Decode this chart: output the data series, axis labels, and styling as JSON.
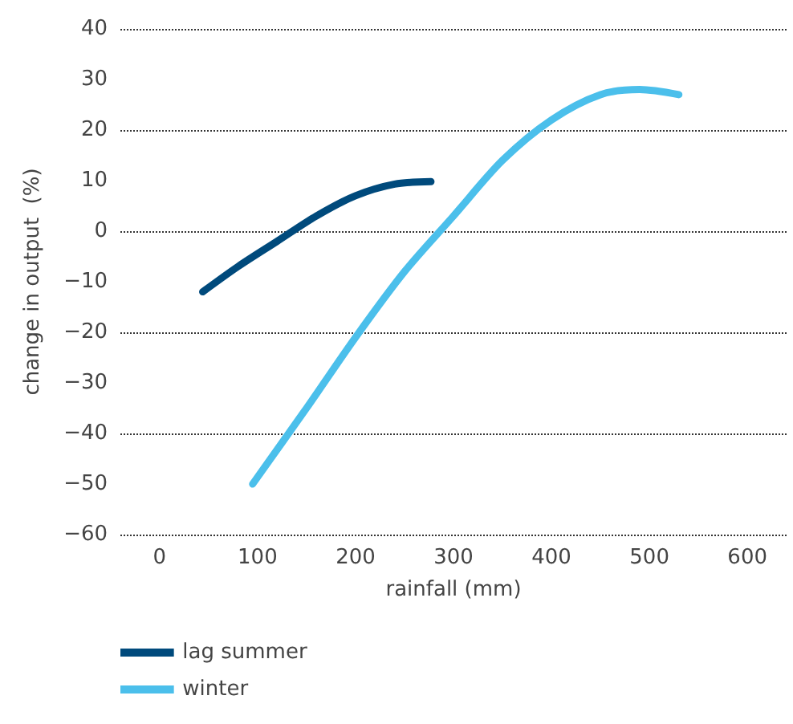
{
  "chart_data": {
    "type": "line",
    "xlabel": "rainfall (mm)",
    "ylabel": "change in output  (%)",
    "xlim": [
      -40,
      640
    ],
    "xticks": [
      0,
      100,
      200,
      300,
      400,
      500,
      600
    ],
    "ylim": [
      -60,
      40
    ],
    "yticks": [
      {
        "value": -60,
        "label": "−60"
      },
      {
        "value": -50,
        "label": "−50"
      },
      {
        "value": -40,
        "label": "−40"
      },
      {
        "value": -30,
        "label": "−30"
      },
      {
        "value": -20,
        "label": "−20"
      },
      {
        "value": -10,
        "label": "−10"
      },
      0,
      10,
      20,
      30,
      40
    ],
    "grid": "y",
    "legend": "bottom",
    "marker": "none",
    "line_style": "solid",
    "series": [
      {
        "name": "lag summer",
        "color": "#004a7c",
        "x": [
          44,
          80,
          120,
          160,
          200,
          240,
          277
        ],
        "values": [
          -12,
          -7,
          -2,
          3,
          7,
          9.3,
          9.8
        ]
      },
      {
        "name": "winter",
        "color": "#4bbfeb",
        "x": [
          95,
          150,
          200,
          250,
          300,
          350,
          400,
          450,
          490,
          530
        ],
        "values": [
          -50,
          -35,
          -21,
          -8,
          3,
          14,
          22,
          27,
          28,
          27
        ]
      }
    ]
  }
}
